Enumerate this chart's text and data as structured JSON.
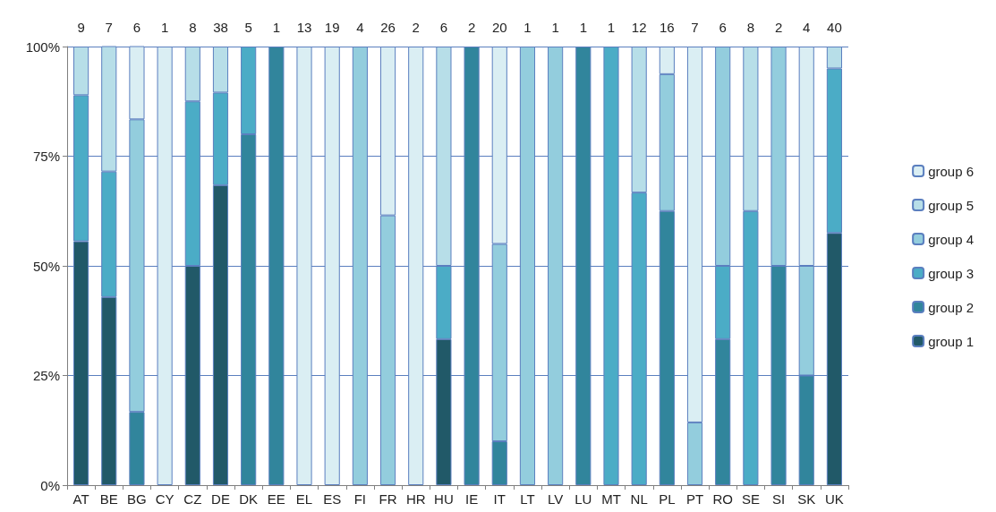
{
  "chart_data": {
    "type": "bar",
    "stacked": true,
    "categories": [
      "AT",
      "BE",
      "BG",
      "CY",
      "CZ",
      "DE",
      "DK",
      "EE",
      "EL",
      "ES",
      "FI",
      "FR",
      "HR",
      "HU",
      "IE",
      "IT",
      "LT",
      "LV",
      "LU",
      "MT",
      "NL",
      "PL",
      "PT",
      "RO",
      "SE",
      "SI",
      "SK",
      "UK"
    ],
    "series": [
      {
        "name": "group 1",
        "color": "#215968",
        "values": [
          55.6,
          42.9,
          null,
          null,
          50,
          68.4,
          null,
          null,
          null,
          null,
          null,
          null,
          null,
          33.3,
          null,
          null,
          null,
          null,
          null,
          null,
          null,
          null,
          null,
          null,
          null,
          null,
          null,
          57.5
        ]
      },
      {
        "name": "group 2",
        "color": "#31859c",
        "values": [
          null,
          null,
          16.7,
          null,
          null,
          null,
          80,
          100,
          null,
          null,
          null,
          null,
          null,
          null,
          100,
          10,
          null,
          null,
          100,
          null,
          null,
          62.5,
          null,
          33.3,
          null,
          50,
          25,
          null
        ]
      },
      {
        "name": "group 3",
        "color": "#4bacc6",
        "values": [
          33.3,
          28.6,
          null,
          null,
          37.5,
          21.1,
          20,
          null,
          null,
          null,
          null,
          null,
          null,
          16.7,
          null,
          null,
          null,
          null,
          null,
          100,
          66.7,
          null,
          null,
          16.7,
          62.5,
          null,
          null,
          37.5
        ]
      },
      {
        "name": "group 4",
        "color": "#93cddd",
        "values": [
          null,
          null,
          66.7,
          null,
          null,
          null,
          null,
          null,
          null,
          null,
          100,
          61.5,
          null,
          null,
          null,
          45,
          100,
          100,
          null,
          null,
          null,
          31.2,
          14.3,
          50,
          null,
          50,
          25,
          null
        ]
      },
      {
        "name": "group 5",
        "color": "#b7dee8",
        "values": [
          11.1,
          28.6,
          null,
          null,
          12.5,
          10.5,
          null,
          null,
          null,
          null,
          null,
          null,
          null,
          50,
          null,
          null,
          null,
          null,
          null,
          null,
          33.3,
          null,
          null,
          null,
          37.5,
          null,
          null,
          5
        ]
      },
      {
        "name": "group 6",
        "color": "#daeef3",
        "values": [
          null,
          null,
          16.7,
          100,
          null,
          null,
          null,
          null,
          100,
          100,
          null,
          38.5,
          100,
          null,
          null,
          45,
          null,
          null,
          null,
          null,
          null,
          6.3,
          85.7,
          null,
          null,
          null,
          50,
          null
        ]
      }
    ],
    "annotations": [
      "9",
      "7",
      "6",
      "1",
      "8",
      "38",
      "5",
      "1",
      "13",
      "19",
      "4",
      "26",
      "2",
      "6",
      "2",
      "20",
      "1",
      "1",
      "1",
      "1",
      "12",
      "16",
      "7",
      "6",
      "8",
      "2",
      "4",
      "40"
    ],
    "ylim": [
      0,
      100
    ],
    "yticks": [
      {
        "value": 0,
        "label": "0%"
      },
      {
        "value": 25,
        "label": "25%"
      },
      {
        "value": 50,
        "label": "50%"
      },
      {
        "value": 75,
        "label": "75%"
      },
      {
        "value": 100,
        "label": "100%"
      }
    ],
    "grid": "y",
    "legend": "right"
  }
}
